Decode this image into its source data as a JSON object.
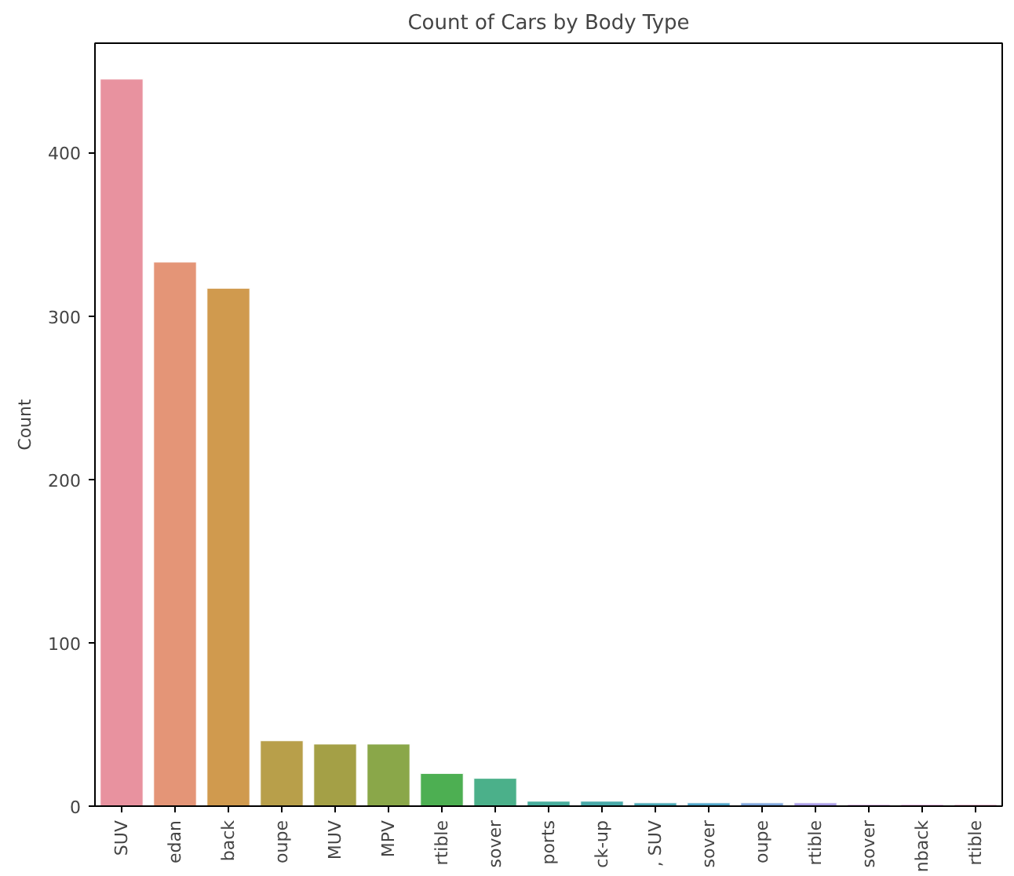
{
  "chart_data": {
    "type": "bar",
    "title": "Count of Cars by Body Type",
    "ylabel": "Count",
    "categories": [
      "SUV",
      "edan",
      "back",
      "oupe",
      "MUV",
      "MPV",
      "rtible",
      "sover",
      "ports",
      "ck-up",
      ", SUV",
      "sover",
      "oupe",
      "rtible",
      "sover",
      "nback",
      "rtible"
    ],
    "values": [
      445,
      333,
      317,
      40,
      38,
      38,
      20,
      17,
      3,
      3,
      2,
      2,
      2,
      2,
      1,
      1,
      1
    ],
    "colors": [
      "#e8929f",
      "#e49577",
      "#d09a4e",
      "#b89f4a",
      "#a4a046",
      "#8aa749",
      "#4daf52",
      "#4bb08a",
      "#47ad9c",
      "#49aaa9",
      "#4aa8b5",
      "#50a5c9",
      "#7ea5dc",
      "#a99ce6",
      "#c892df",
      "#e08fcf",
      "#e691b4"
    ],
    "ylim": [
      0,
      467
    ],
    "yticks": [
      0,
      100,
      200,
      300,
      400
    ],
    "grid": false
  }
}
